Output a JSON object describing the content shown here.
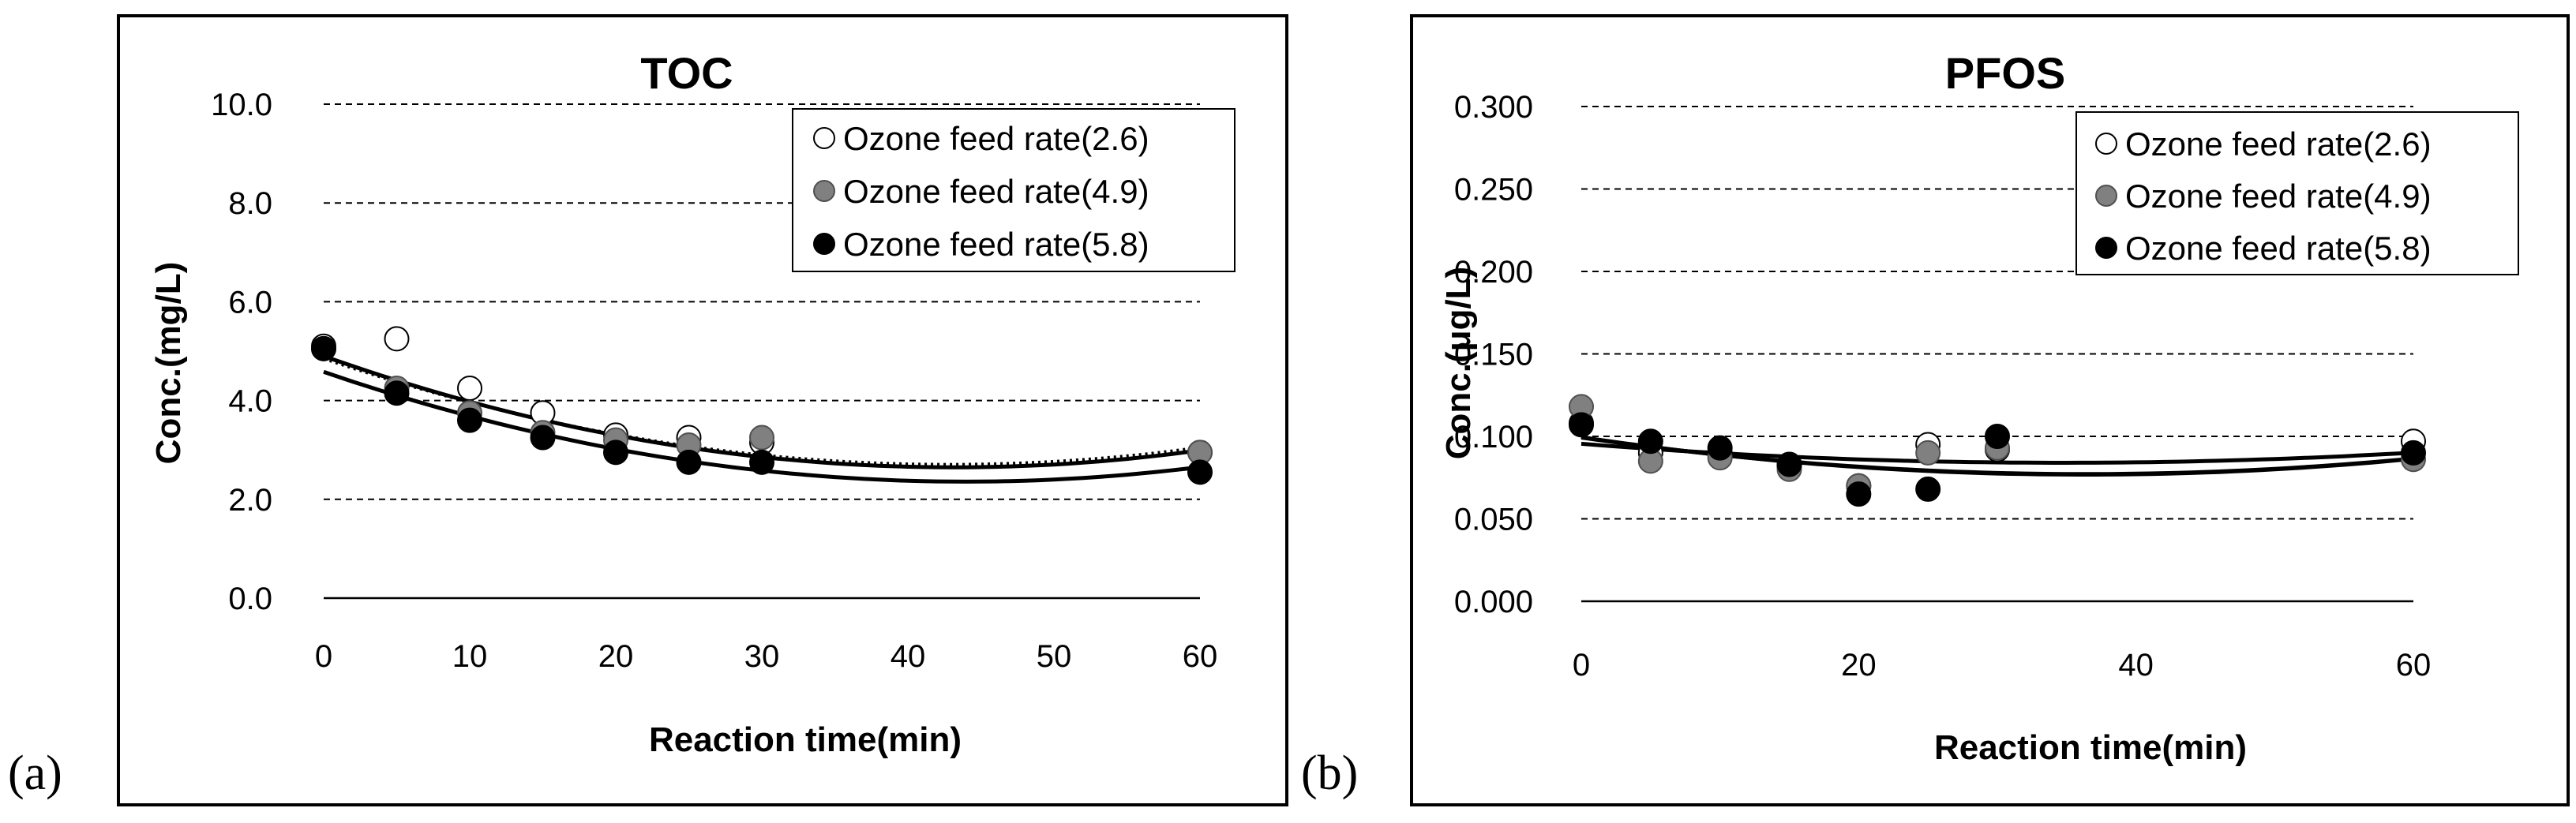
{
  "figure": {
    "panel_letters": [
      "(a)",
      "(b)"
    ]
  },
  "chart_data": [
    {
      "type": "scatter",
      "panel": "(a)",
      "title": "TOC",
      "xlabel": "Reaction time(min)",
      "ylabel": "Conc.(mg/L)",
      "xlim": [
        0,
        60
      ],
      "ylim": [
        0,
        10
      ],
      "x_ticks": [
        "0",
        "10",
        "20",
        "30",
        "40",
        "50",
        "60"
      ],
      "y_ticks": [
        "0.0",
        "2.0",
        "4.0",
        "6.0",
        "8.0",
        "10.0"
      ],
      "grid": "horizontal-dashed",
      "legend_position": "top-right",
      "series": [
        {
          "name": "Ozone feed rate(2.6)",
          "marker": "open-circle",
          "color": "#ffffff",
          "x": [
            0,
            5,
            10,
            15,
            20,
            25,
            30,
            60
          ],
          "y": [
            5.1,
            5.25,
            4.25,
            3.75,
            3.3,
            3.25,
            3.15,
            2.95
          ]
        },
        {
          "name": "Ozone feed rate(4.9)",
          "marker": "gray-circle",
          "color": "#808080",
          "x": [
            0,
            5,
            10,
            15,
            20,
            25,
            30,
            60
          ],
          "y": [
            5.05,
            4.25,
            3.75,
            3.35,
            3.2,
            3.1,
            3.25,
            2.95
          ]
        },
        {
          "name": "Ozone feed rate(5.8)",
          "marker": "black-circle",
          "color": "#000000",
          "x": [
            0,
            5,
            10,
            15,
            20,
            25,
            30,
            60
          ],
          "y": [
            5.05,
            4.15,
            3.6,
            3.25,
            2.95,
            2.75,
            2.75,
            2.55
          ]
        }
      ],
      "trendlines": [
        {
          "style": "solid",
          "a": 0.00121,
          "b": -0.1044,
          "c": 4.9
        },
        {
          "style": "dotted",
          "a": 0.00117,
          "b": -0.1002,
          "c": 4.85
        },
        {
          "style": "solid",
          "a": 0.00115,
          "b": -0.1011,
          "c": 4.58
        }
      ]
    },
    {
      "type": "scatter",
      "panel": "(b)",
      "title": "PFOS",
      "xlabel": "Reaction time(min)",
      "ylabel": "Conc.(μg/L)",
      "xlim": [
        0,
        60
      ],
      "ylim": [
        0,
        0.3
      ],
      "x_ticks": [
        "0",
        "20",
        "40",
        "60"
      ],
      "y_ticks": [
        "0.000",
        "0.050",
        "0.100",
        "0.150",
        "0.200",
        "0.250",
        "0.300"
      ],
      "grid": "horizontal-dashed",
      "legend_position": "top-right",
      "series": [
        {
          "name": "Ozone feed rate(2.6)",
          "marker": "open-circle",
          "color": "#ffffff",
          "x": [
            0,
            5,
            10,
            15,
            20,
            25,
            30,
            60
          ],
          "y": [
            0.108,
            0.09,
            0.09,
            0.082,
            0.07,
            0.095,
            0.092,
            0.097
          ]
        },
        {
          "name": "Ozone feed rate(4.9)",
          "marker": "gray-circle",
          "color": "#808080",
          "x": [
            0,
            5,
            10,
            15,
            20,
            25,
            30,
            60
          ],
          "y": [
            0.118,
            0.085,
            0.087,
            0.08,
            0.07,
            0.09,
            0.093,
            0.086
          ]
        },
        {
          "name": "Ozone feed rate(5.8)",
          "marker": "black-circle",
          "color": "#000000",
          "x": [
            0,
            5,
            10,
            15,
            20,
            25,
            30,
            60
          ],
          "y": [
            0.107,
            0.097,
            0.093,
            0.083,
            0.065,
            0.068,
            0.1,
            0.09
          ]
        }
      ],
      "trendlines": [
        {
          "style": "solid",
          "a": 9.6e-06,
          "b": -0.000665,
          "c": 0.0955
        },
        {
          "style": "solid",
          "a": 1.72e-05,
          "b": -0.00125,
          "c": 0.0995
        },
        {
          "style": "solid",
          "a": 1.68e-05,
          "b": -0.00122,
          "c": 0.0993
        }
      ]
    }
  ]
}
